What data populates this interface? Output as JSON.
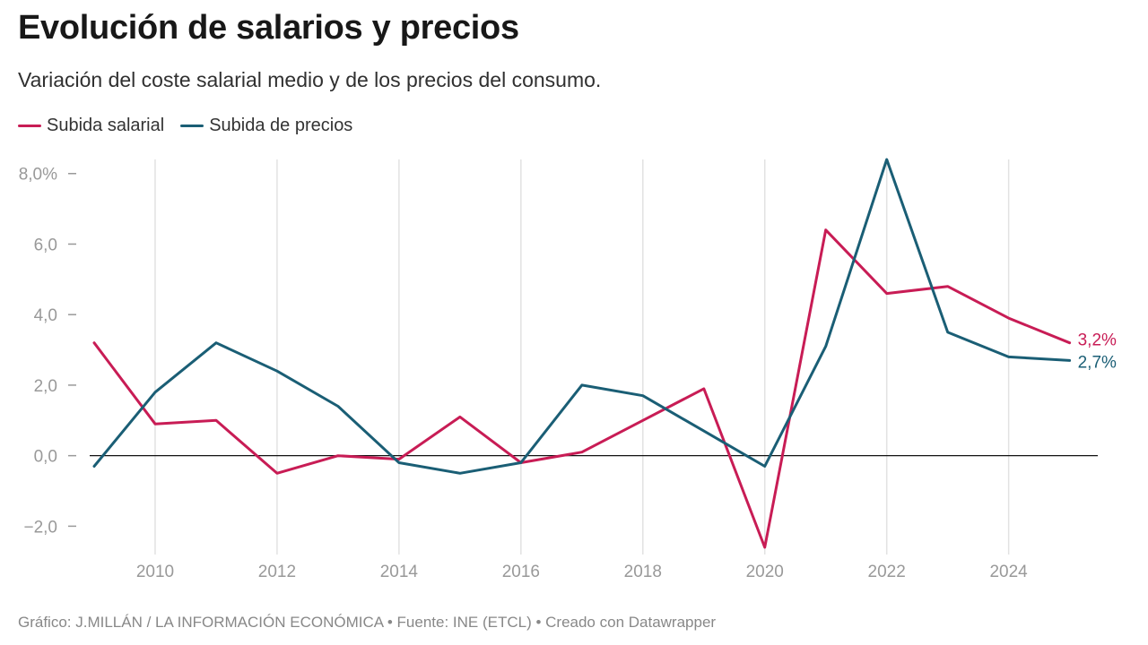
{
  "title": "Evolución de salarios y precios",
  "subtitle": "Variación del coste salarial medio y de los precios del consumo.",
  "footer": "Gráfico: J.MILLÁN / LA INFORMACIÓN ECONÓMICA • Fuente: INE (ETCL) • Creado con Datawrapper",
  "colors": {
    "salarial": "#c81c55",
    "precios": "#1a5e75",
    "grid": "#e2e2e2",
    "zero": "#111111",
    "axis": "#999999"
  },
  "chart_data": {
    "type": "line",
    "title": "Evolución de salarios y precios",
    "xlabel": "",
    "ylabel": "",
    "x": [
      2009,
      2010,
      2011,
      2012,
      2013,
      2014,
      2015,
      2016,
      2017,
      2018,
      2019,
      2020,
      2021,
      2022,
      2023,
      2024,
      2025
    ],
    "xlim": [
      2009,
      2025.3
    ],
    "ylim": [
      -2.6,
      8.4
    ],
    "x_ticks": [
      2010,
      2012,
      2014,
      2016,
      2018,
      2020,
      2022,
      2024
    ],
    "x_tick_labels": [
      "2010",
      "2012",
      "2014",
      "2016",
      "2018",
      "2020",
      "2022",
      "2024"
    ],
    "y_ticks": [
      8,
      6,
      4,
      2,
      0,
      -2
    ],
    "y_tick_labels": [
      "8,0%",
      "6,0",
      "4,0",
      "2,0",
      "0,0",
      "−2,0"
    ],
    "grid": "vertical",
    "legend": "top-left",
    "series": [
      {
        "name": "Subida salarial",
        "color": "#c81c55",
        "values": [
          3.2,
          0.9,
          1.0,
          -0.5,
          0.0,
          -0.1,
          1.1,
          -0.2,
          0.1,
          1.0,
          1.9,
          -2.6,
          6.4,
          4.6,
          4.8,
          3.9,
          3.2
        ],
        "end_label": "3,2%"
      },
      {
        "name": "Subida de precios",
        "color": "#1a5e75",
        "values": [
          -0.3,
          1.8,
          3.2,
          2.4,
          1.4,
          -0.2,
          -0.5,
          -0.2,
          2.0,
          1.7,
          0.7,
          -0.3,
          3.1,
          8.4,
          3.5,
          2.8,
          2.7
        ],
        "end_label": "2,7%"
      }
    ]
  }
}
